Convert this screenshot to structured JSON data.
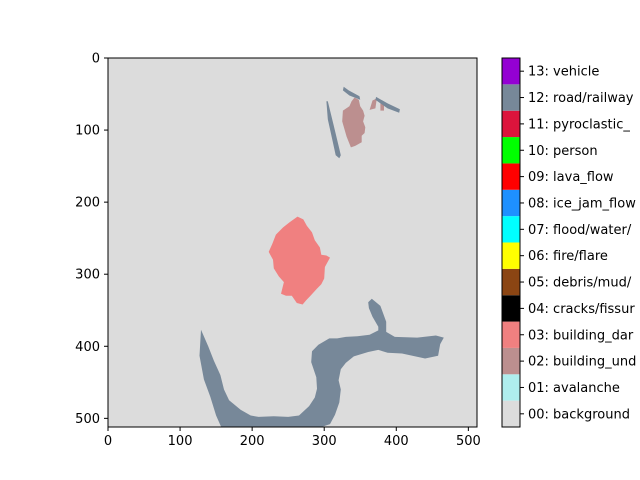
{
  "chart_data": {
    "type": "heatmap",
    "title": "",
    "xlabel": "",
    "ylabel": "",
    "xlim": [
      0,
      512
    ],
    "ylim": [
      512,
      0
    ],
    "x_ticks": [
      "0",
      "100",
      "200",
      "300",
      "400",
      "500"
    ],
    "x_tick_values": [
      0,
      100,
      200,
      300,
      400,
      500
    ],
    "y_ticks": [
      "0",
      "100",
      "200",
      "300",
      "400",
      "500"
    ],
    "y_tick_values": [
      0,
      100,
      200,
      300,
      400,
      500
    ],
    "background_color": "#dcdcdc",
    "colorbar": {
      "classes": [
        {
          "label": "00: background",
          "color": "#dcdcdc"
        },
        {
          "label": "01: avalanche",
          "color": "#afeeee"
        },
        {
          "label": "02: building_und",
          "color": "#bc8f8f"
        },
        {
          "label": "03: building_dar",
          "color": "#f08080"
        },
        {
          "label": "04: cracks/fissur",
          "color": "#000000"
        },
        {
          "label": "05: debris/mud/",
          "color": "#8b4513"
        },
        {
          "label": "06: fire/flare",
          "color": "#ffff00"
        },
        {
          "label": "07: flood/water/",
          "color": "#00ffff"
        },
        {
          "label": "08: ice_jam_flow",
          "color": "#1e90ff"
        },
        {
          "label": "09: lava_flow",
          "color": "#ff0000"
        },
        {
          "label": "10: person",
          "color": "#00ff00"
        },
        {
          "label": "11: pyroclastic_",
          "color": "#dc143c"
        },
        {
          "label": "12: road/railway",
          "color": "#778899"
        },
        {
          "label": "13: vehicle",
          "color": "#9400d3"
        }
      ]
    },
    "regions": [
      {
        "class": "02: building_und",
        "color": "#bc8f8f",
        "points": [
          [
            326,
            73
          ],
          [
            335,
            67
          ],
          [
            338,
            60
          ],
          [
            342,
            55
          ],
          [
            348,
            58
          ],
          [
            350,
            67
          ],
          [
            354,
            73
          ],
          [
            356,
            80
          ],
          [
            354,
            88
          ],
          [
            357,
            96
          ],
          [
            356,
            104
          ],
          [
            352,
            108
          ],
          [
            352,
            117
          ],
          [
            343,
            122
          ],
          [
            337,
            124
          ],
          [
            331,
            109
          ],
          [
            325,
            88
          ]
        ]
      },
      {
        "class": "02: building_und",
        "color": "#bc8f8f",
        "points": [
          [
            363,
            72
          ],
          [
            367,
            59
          ],
          [
            373,
            56
          ],
          [
            371,
            70
          ]
        ]
      },
      {
        "class": "02: building_und",
        "color": "#bc8f8f",
        "points": [
          [
            378,
            63
          ],
          [
            383,
            63
          ],
          [
            383,
            73
          ],
          [
            378,
            73
          ]
        ]
      },
      {
        "class": "03: building_dar",
        "color": "#f08080",
        "points": [
          [
            233,
            245
          ],
          [
            243,
            235
          ],
          [
            252,
            228
          ],
          [
            263,
            220
          ],
          [
            271,
            224
          ],
          [
            276,
            233
          ],
          [
            283,
            242
          ],
          [
            287,
            253
          ],
          [
            294,
            263
          ],
          [
            296,
            273
          ],
          [
            303,
            274
          ],
          [
            308,
            277
          ],
          [
            301,
            290
          ],
          [
            300,
            306
          ],
          [
            296,
            314
          ],
          [
            290,
            320
          ],
          [
            281,
            330
          ],
          [
            275,
            336
          ],
          [
            270,
            342
          ],
          [
            262,
            340
          ],
          [
            255,
            330
          ],
          [
            247,
            330
          ],
          [
            240,
            327
          ],
          [
            244,
            311
          ],
          [
            237,
            303
          ],
          [
            230,
            292
          ],
          [
            229,
            280
          ],
          [
            223,
            269
          ],
          [
            228,
            258
          ]
        ]
      },
      {
        "class": "12: road/railway",
        "color": "#778899",
        "points": [
          [
            305,
            60
          ],
          [
            313,
            93
          ],
          [
            321,
            126
          ],
          [
            323,
            135
          ],
          [
            321,
            139
          ],
          [
            316,
            135
          ],
          [
            311,
            112
          ],
          [
            305,
            85
          ],
          [
            303,
            60
          ]
        ]
      },
      {
        "class": "12: road/railway",
        "color": "#778899",
        "points": [
          [
            327,
            40
          ],
          [
            334,
            45
          ],
          [
            349,
            53
          ],
          [
            350,
            58
          ],
          [
            335,
            52
          ],
          [
            326,
            45
          ]
        ]
      },
      {
        "class": "12: road/railway",
        "color": "#778899",
        "points": [
          [
            372,
            54
          ],
          [
            388,
            63
          ],
          [
            405,
            71
          ],
          [
            404,
            76
          ],
          [
            388,
            70
          ],
          [
            371,
            58
          ]
        ]
      },
      {
        "class": "12: road/railway",
        "color": "#778899",
        "points": [
          [
            129,
            377
          ],
          [
            139,
            400
          ],
          [
            147,
            420
          ],
          [
            156,
            440
          ],
          [
            161,
            460
          ],
          [
            168,
            475
          ],
          [
            184,
            488
          ],
          [
            198,
            496
          ],
          [
            209,
            498
          ],
          [
            230,
            497
          ],
          [
            250,
            498
          ],
          [
            265,
            496
          ],
          [
            279,
            483
          ],
          [
            287,
            471
          ],
          [
            290,
            459
          ],
          [
            289,
            443
          ],
          [
            282,
            422
          ],
          [
            283,
            407
          ],
          [
            292,
            398
          ],
          [
            307,
            389
          ],
          [
            318,
            389
          ],
          [
            330,
            387
          ],
          [
            346,
            386
          ],
          [
            363,
            384
          ],
          [
            375,
            378
          ],
          [
            375,
            373
          ],
          [
            367,
            359
          ],
          [
            362,
            347
          ],
          [
            361,
            339
          ],
          [
            366,
            334
          ],
          [
            378,
            344
          ],
          [
            386,
            366
          ],
          [
            386,
            380
          ],
          [
            398,
            387
          ],
          [
            429,
            388
          ],
          [
            455,
            385
          ],
          [
            466,
            388
          ],
          [
            461,
            397
          ],
          [
            458,
            413
          ],
          [
            440,
            417
          ],
          [
            408,
            410
          ],
          [
            388,
            409
          ],
          [
            375,
            405
          ],
          [
            361,
            408
          ],
          [
            341,
            414
          ],
          [
            330,
            423
          ],
          [
            323,
            432
          ],
          [
            320,
            447
          ],
          [
            323,
            460
          ],
          [
            321,
            478
          ],
          [
            315,
            495
          ],
          [
            308,
            508
          ],
          [
            296,
            512
          ],
          [
            157,
            512
          ],
          [
            150,
            496
          ],
          [
            142,
            470
          ],
          [
            133,
            446
          ],
          [
            127,
            413
          ]
        ]
      }
    ]
  }
}
